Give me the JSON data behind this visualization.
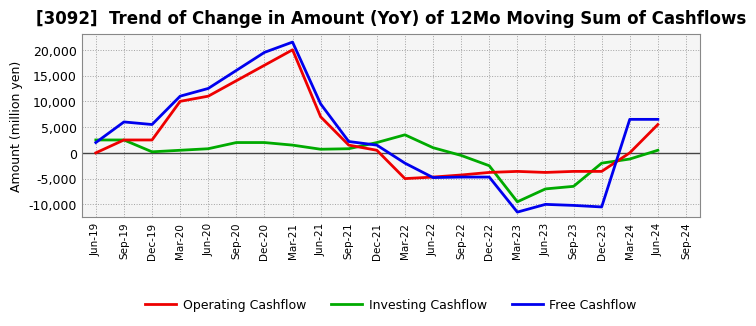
{
  "title": "[3092]  Trend of Change in Amount (YoY) of 12Mo Moving Sum of Cashflows",
  "ylabel": "Amount (million yen)",
  "xlabels": [
    "Jun-19",
    "Sep-19",
    "Dec-19",
    "Mar-20",
    "Jun-20",
    "Sep-20",
    "Dec-20",
    "Mar-21",
    "Jun-21",
    "Sep-21",
    "Dec-21",
    "Mar-22",
    "Jun-22",
    "Sep-22",
    "Dec-22",
    "Mar-23",
    "Jun-23",
    "Sep-23",
    "Dec-23",
    "Mar-24",
    "Jun-24",
    "Sep-24"
  ],
  "operating": [
    0,
    2500,
    2500,
    10000,
    11000,
    14000,
    17000,
    20000,
    7000,
    1500,
    500,
    -5000,
    -4700,
    -4300,
    -3800,
    -3600,
    -3800,
    -3600,
    -3600,
    0,
    5500,
    null
  ],
  "investing": [
    2500,
    2500,
    200,
    500,
    800,
    2000,
    2000,
    1500,
    700,
    800,
    2000,
    3500,
    1000,
    -500,
    -2500,
    -9500,
    -7000,
    -6500,
    -2000,
    -1200,
    500,
    null
  ],
  "free": [
    2000,
    6000,
    5500,
    11000,
    12500,
    16000,
    19500,
    21500,
    9500,
    2200,
    1500,
    -2000,
    -4800,
    -4700,
    -4700,
    -11500,
    -10000,
    -10200,
    -10500,
    6500,
    6500,
    null
  ],
  "operating_color": "#ee0000",
  "investing_color": "#00aa00",
  "free_color": "#0000ee",
  "ylim": [
    -12500,
    23000
  ],
  "background_color": "#ffffff",
  "plot_bg_color": "#f5f5f5",
  "grid_color": "#999999",
  "title_fontsize": 12,
  "legend_labels": [
    "Operating Cashflow",
    "Investing Cashflow",
    "Free Cashflow"
  ]
}
